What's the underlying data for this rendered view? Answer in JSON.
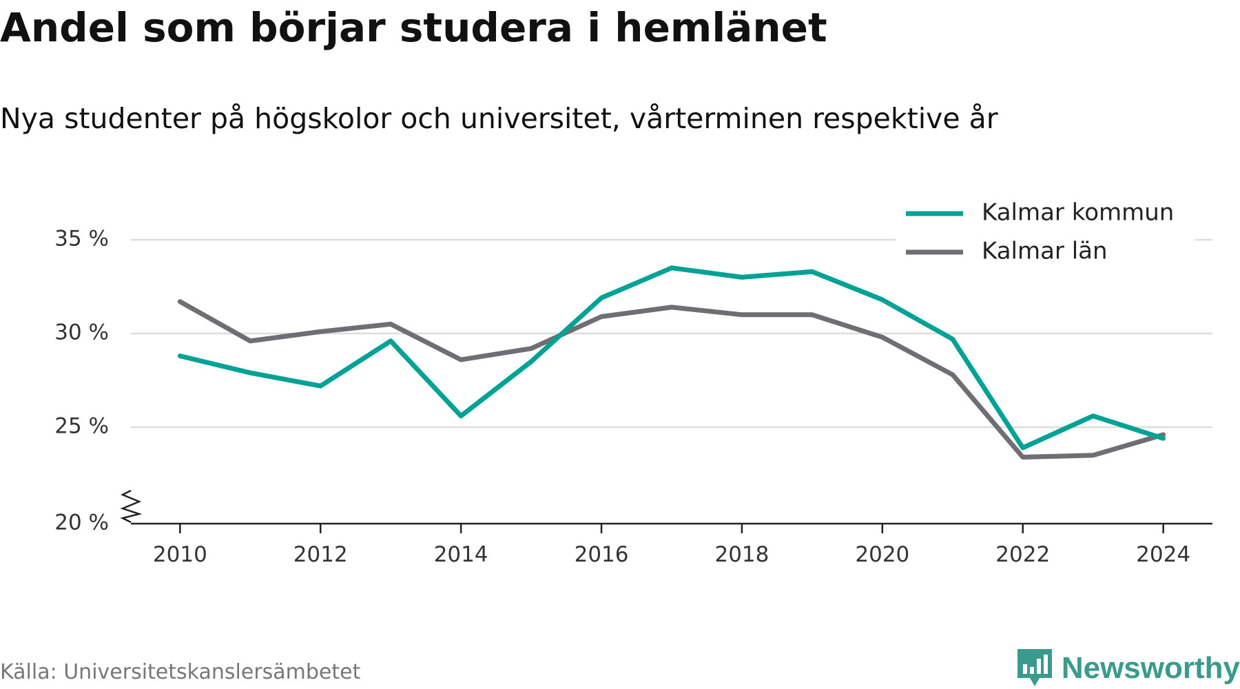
{
  "title": "Andel som börjar studera i hemlänet",
  "subtitle": "Nya studenter på högskolor och universitet, vårterminen respektive år",
  "source": "Källa: Universitetskanslersämbetet",
  "brand": "Newsworthy",
  "chart_data": {
    "type": "line",
    "title": "Andel som börjar studera i hemlänet",
    "subtitle": "Nya studenter på högskolor och universitet, vårterminen respektive år",
    "xlabel": "",
    "ylabel": "",
    "x": [
      2010,
      2011,
      2012,
      2013,
      2014,
      2015,
      2016,
      2017,
      2018,
      2019,
      2020,
      2021,
      2022,
      2023,
      2024
    ],
    "xticks": [
      "2010",
      "2012",
      "2014",
      "2016",
      "2018",
      "2020",
      "2022",
      "2024"
    ],
    "xlim": [
      2009.3,
      2024.7
    ],
    "yticks": [
      "20 %",
      "25 %",
      "30 %",
      "35 %"
    ],
    "ylim": [
      20,
      35
    ],
    "axis_break": true,
    "grid": true,
    "legend_position": "top-right",
    "series": [
      {
        "name": "Kalmar kommun",
        "color": "#00a296",
        "values": [
          28.8,
          27.9,
          27.2,
          29.6,
          25.6,
          28.5,
          31.9,
          33.5,
          33.0,
          33.3,
          31.8,
          29.7,
          23.9,
          25.6,
          24.4
        ]
      },
      {
        "name": "Kalmar län",
        "color": "#6e6e73",
        "values": [
          31.7,
          29.6,
          30.1,
          30.5,
          28.6,
          29.2,
          30.9,
          31.4,
          31.0,
          31.0,
          29.8,
          27.8,
          23.4,
          23.5,
          24.6
        ]
      }
    ]
  },
  "colors": {
    "grid": "#dddddd",
    "axis": "#222222",
    "brand": "#3a9a8e"
  }
}
